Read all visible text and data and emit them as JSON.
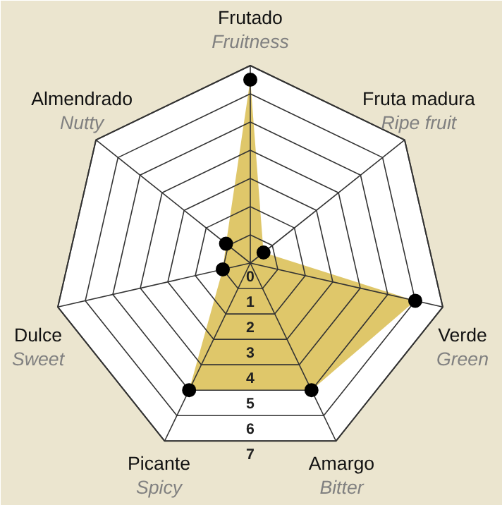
{
  "chart_data": {
    "type": "radar",
    "categories": [
      "Frutado\nFruitness",
      "Fruta madura\nRipe fruit",
      "Verde\nGreen",
      "Amargo\nBitter",
      "Picante\nSpicy",
      "Dulce\nSweet",
      "Almendrado\nNutty"
    ],
    "series": [
      {
        "color": "#dcc15a",
        "values": [
          6.5,
          0.6,
          6.0,
          5.0,
          5.0,
          1.0,
          1.1
        ]
      }
    ],
    "ylim": [
      0,
      7
    ],
    "yticks": [
      0,
      1,
      2,
      3,
      4,
      5,
      6,
      7
    ],
    "grid": true,
    "marker": "circle"
  }
}
